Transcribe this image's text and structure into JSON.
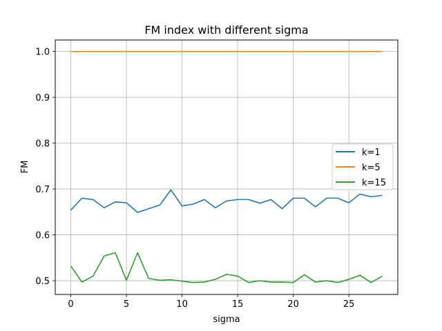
{
  "chart_data": {
    "type": "line",
    "title": "FM index with different sigma",
    "xlabel": "sigma",
    "ylabel": "FM",
    "xlim": [
      -1.4,
      29.4
    ],
    "ylim": [
      0.47,
      1.025
    ],
    "x_ticks": [
      0,
      5,
      10,
      15,
      20,
      25
    ],
    "y_ticks": [
      0.5,
      0.6,
      0.7,
      0.8,
      0.9,
      1.0
    ],
    "x_tick_labels": [
      "0",
      "5",
      "10",
      "15",
      "20",
      "25"
    ],
    "y_tick_labels": [
      "0.5",
      "0.6",
      "0.7",
      "0.8",
      "0.9",
      "1.0"
    ],
    "grid": true,
    "legend_position": "center-right",
    "x": [
      0,
      1,
      2,
      3,
      4,
      5,
      6,
      7,
      8,
      9,
      10,
      11,
      12,
      13,
      14,
      15,
      16,
      17,
      18,
      19,
      20,
      21,
      22,
      23,
      24,
      25,
      26,
      27,
      28
    ],
    "series": [
      {
        "name": "k=1",
        "color": "#1f77b4",
        "values": [
          0.654,
          0.68,
          0.677,
          0.659,
          0.672,
          0.67,
          0.649,
          0.657,
          0.665,
          0.698,
          0.663,
          0.667,
          0.677,
          0.659,
          0.674,
          0.677,
          0.677,
          0.669,
          0.677,
          0.657,
          0.68,
          0.68,
          0.661,
          0.68,
          0.68,
          0.67,
          0.689,
          0.683,
          0.686
        ]
      },
      {
        "name": "k=5",
        "color": "#ff7f0e",
        "values": [
          1.0,
          1.0,
          1.0,
          1.0,
          1.0,
          1.0,
          1.0,
          1.0,
          1.0,
          1.0,
          1.0,
          1.0,
          1.0,
          1.0,
          1.0,
          1.0,
          1.0,
          1.0,
          1.0,
          1.0,
          1.0,
          1.0,
          1.0,
          1.0,
          1.0,
          1.0,
          1.0,
          1.0,
          1.0
        ]
      },
      {
        "name": "k=15",
        "color": "#2ca02c",
        "values": [
          0.532,
          0.497,
          0.51,
          0.554,
          0.561,
          0.501,
          0.561,
          0.505,
          0.501,
          0.502,
          0.499,
          0.496,
          0.497,
          0.503,
          0.514,
          0.51,
          0.496,
          0.5,
          0.497,
          0.497,
          0.496,
          0.513,
          0.497,
          0.5,
          0.496,
          0.503,
          0.512,
          0.496,
          0.51
        ]
      }
    ]
  }
}
